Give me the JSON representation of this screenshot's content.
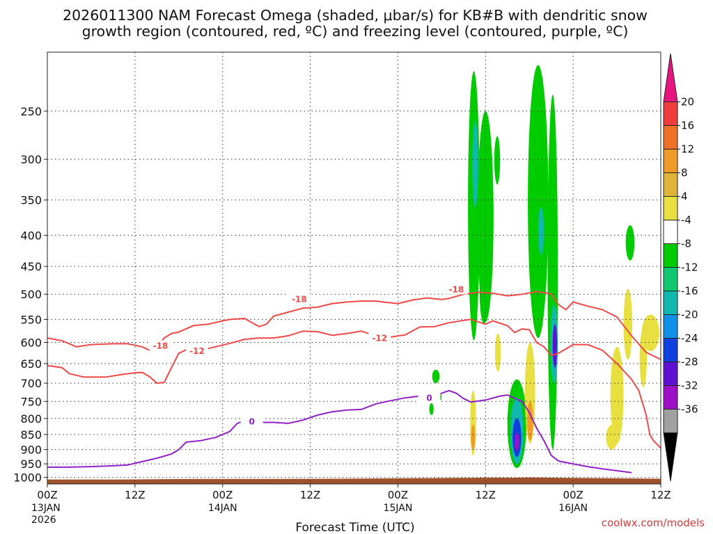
{
  "chart_data": {
    "type": "area",
    "title_line1": "2026011300 NAM Forecast Omega (shaded, μbar/s) for KB#B with dendritic snow",
    "title_line2": "growth region (contoured, red, ºC) and freezing level (contoured, purple, ºC)",
    "xlabel": "Forecast Time (UTC)",
    "ylabel": "",
    "credit": "coolwx.com/models",
    "x_range_hours": [
      0,
      84
    ],
    "y_range_hPa": [
      200,
      1025
    ],
    "y_scale": "pressure-log",
    "grid": true,
    "yticks": [
      {
        "p": 250,
        "label": "250"
      },
      {
        "p": 300,
        "label": "300"
      },
      {
        "p": 350,
        "label": "350"
      },
      {
        "p": 400,
        "label": "400"
      },
      {
        "p": 450,
        "label": "450"
      },
      {
        "p": 500,
        "label": "500"
      },
      {
        "p": 550,
        "label": "550"
      },
      {
        "p": 600,
        "label": "600"
      },
      {
        "p": 650,
        "label": "650"
      },
      {
        "p": 700,
        "label": "700"
      },
      {
        "p": 750,
        "label": "750"
      },
      {
        "p": 800,
        "label": "800"
      },
      {
        "p": 850,
        "label": "850"
      },
      {
        "p": 900,
        "label": "900"
      },
      {
        "p": 950,
        "label": "950"
      },
      {
        "p": 1000,
        "label": "1000"
      }
    ],
    "xticks": [
      {
        "h": 0,
        "label": "00Z",
        "sub1": "13JAN",
        "sub2": "2026"
      },
      {
        "h": 12,
        "label": "12Z",
        "sub1": "",
        "sub2": ""
      },
      {
        "h": 24,
        "label": "00Z",
        "sub1": "14JAN",
        "sub2": ""
      },
      {
        "h": 36,
        "label": "12Z",
        "sub1": "",
        "sub2": ""
      },
      {
        "h": 48,
        "label": "00Z",
        "sub1": "15JAN",
        "sub2": ""
      },
      {
        "h": 60,
        "label": "12Z",
        "sub1": "",
        "sub2": ""
      },
      {
        "h": 72,
        "label": "00Z",
        "sub1": "16JAN",
        "sub2": ""
      },
      {
        "h": 84,
        "label": "12Z",
        "sub1": "",
        "sub2": ""
      }
    ],
    "colorbar": {
      "labels": [
        "20",
        "16",
        "12",
        "8",
        "4",
        "-4",
        "-8",
        "-12",
        "-16",
        "-20",
        "-24",
        "-28",
        "-32",
        "-36"
      ],
      "colors": [
        "#e8157f",
        "#f03c3c",
        "#f07028",
        "#f09a28",
        "#e0b438",
        "#e8e040",
        "#ffffff",
        "#00cc00",
        "#10c870",
        "#10b8b0",
        "#1090e8",
        "#1040e0",
        "#6010d0",
        "#9c10c8",
        "#a0a0a0",
        "#000000"
      ]
    },
    "series": [
      {
        "name": "-18",
        "color": "#f04848",
        "label_positions": [
          [
            15.5,
            608
          ],
          [
            34.5,
            510
          ],
          [
            56.0,
            491
          ]
        ],
        "points": [
          [
            0,
            590
          ],
          [
            2,
            596
          ],
          [
            4,
            610
          ],
          [
            6,
            605
          ],
          [
            9,
            603
          ],
          [
            11,
            603
          ],
          [
            13,
            610
          ],
          [
            14,
            618
          ],
          [
            15,
            612
          ],
          [
            16,
            590
          ],
          [
            17,
            580
          ],
          [
            18,
            577
          ],
          [
            20,
            563
          ],
          [
            22,
            560
          ],
          [
            24,
            553
          ],
          [
            25,
            550
          ],
          [
            27,
            548
          ],
          [
            29,
            565
          ],
          [
            30,
            560
          ],
          [
            31,
            543
          ],
          [
            33,
            535
          ],
          [
            35,
            527
          ],
          [
            37,
            525
          ],
          [
            39,
            518
          ],
          [
            41,
            515
          ],
          [
            43,
            513
          ],
          [
            45,
            513
          ],
          [
            46,
            515
          ],
          [
            48,
            518
          ],
          [
            50,
            511
          ],
          [
            52,
            507
          ],
          [
            54,
            510
          ],
          [
            55,
            508
          ],
          [
            57,
            500
          ],
          [
            59,
            496
          ],
          [
            61,
            498
          ],
          [
            63,
            503
          ],
          [
            65,
            500
          ],
          [
            67,
            495
          ],
          [
            69,
            499
          ],
          [
            70,
            520
          ],
          [
            71,
            530
          ],
          [
            72,
            515
          ],
          [
            74,
            523
          ],
          [
            76,
            530
          ],
          [
            78,
            545
          ],
          [
            80,
            585
          ],
          [
            82,
            623
          ],
          [
            84,
            640
          ]
        ]
      },
      {
        "name": "-12",
        "color": "#f04848",
        "label_positions": [
          [
            20.5,
            620
          ],
          [
            45.5,
            591
          ]
        ],
        "points": [
          [
            0,
            655
          ],
          [
            2,
            660
          ],
          [
            3,
            675
          ],
          [
            5,
            684
          ],
          [
            8,
            684
          ],
          [
            10,
            678
          ],
          [
            12,
            673
          ],
          [
            13,
            672
          ],
          [
            14,
            683
          ],
          [
            15,
            700
          ],
          [
            16,
            698
          ],
          [
            17,
            660
          ],
          [
            18,
            625
          ],
          [
            19,
            617
          ],
          [
            21,
            618
          ],
          [
            23,
            610
          ],
          [
            25,
            602
          ],
          [
            27,
            593
          ],
          [
            29,
            590
          ],
          [
            31,
            590
          ],
          [
            33,
            585
          ],
          [
            35,
            575
          ],
          [
            37,
            576
          ],
          [
            39,
            584
          ],
          [
            41,
            580
          ],
          [
            43,
            575
          ],
          [
            45,
            585
          ],
          [
            47,
            588
          ],
          [
            49,
            583
          ],
          [
            51,
            566
          ],
          [
            53,
            565
          ],
          [
            55,
            557
          ],
          [
            57,
            552
          ],
          [
            58,
            550
          ],
          [
            60,
            560
          ],
          [
            61,
            553
          ],
          [
            63,
            563
          ],
          [
            64,
            578
          ],
          [
            65,
            570
          ],
          [
            66,
            572
          ],
          [
            67,
            600
          ],
          [
            68,
            610
          ],
          [
            69,
            630
          ],
          [
            70,
            625
          ],
          [
            72,
            605
          ],
          [
            74,
            605
          ],
          [
            76,
            618
          ],
          [
            78,
            650
          ],
          [
            80,
            690
          ],
          [
            81,
            720
          ],
          [
            82,
            790
          ],
          [
            82.5,
            850
          ],
          [
            83,
            870
          ],
          [
            84,
            895
          ]
        ]
      },
      {
        "name": "0",
        "color": "#9020c8",
        "label_positions": [
          [
            28.0,
            810
          ],
          [
            52.3,
            741
          ]
        ],
        "points": [
          [
            0,
            962
          ],
          [
            3,
            962
          ],
          [
            6,
            960
          ],
          [
            9,
            957
          ],
          [
            11,
            954
          ],
          [
            13,
            942
          ],
          [
            15,
            930
          ],
          [
            17,
            915
          ],
          [
            18,
            900
          ],
          [
            19,
            875
          ],
          [
            21,
            870
          ],
          [
            23,
            860
          ],
          [
            25,
            840
          ],
          [
            26,
            815
          ],
          [
            28,
            800
          ],
          [
            29,
            812
          ],
          [
            31,
            812
          ],
          [
            33,
            815
          ],
          [
            35,
            805
          ],
          [
            37,
            790
          ],
          [
            39,
            780
          ],
          [
            41,
            775
          ],
          [
            43,
            773
          ],
          [
            45,
            757
          ],
          [
            47,
            748
          ],
          [
            49,
            740
          ],
          [
            51,
            735
          ],
          [
            53,
            735
          ],
          [
            54,
            727
          ],
          [
            55,
            720
          ],
          [
            56,
            727
          ],
          [
            57,
            742
          ],
          [
            58,
            752
          ],
          [
            60,
            746
          ],
          [
            62,
            735
          ],
          [
            63,
            732
          ],
          [
            65,
            750
          ],
          [
            66,
            782
          ],
          [
            67,
            830
          ],
          [
            68,
            870
          ],
          [
            69,
            920
          ],
          [
            70,
            940
          ],
          [
            72,
            950
          ],
          [
            74,
            960
          ],
          [
            76,
            968
          ],
          [
            78,
            975
          ],
          [
            80,
            982
          ]
        ]
      }
    ],
    "omega_regions": [
      {
        "h_center": 58.4,
        "half_width": 0.8,
        "p_top": 215,
        "p_bottom": 595,
        "value": -6
      },
      {
        "h_center": 60.0,
        "half_width": 1.1,
        "p_top": 250,
        "p_bottom": 555,
        "value": -6
      },
      {
        "h_center": 58.6,
        "half_width": 0.4,
        "p_top": 260,
        "p_bottom": 360,
        "value": -14
      },
      {
        "h_center": 61.6,
        "half_width": 0.4,
        "p_top": 275,
        "p_bottom": 330,
        "value": -6
      },
      {
        "h_center": 59.8,
        "half_width": 0.6,
        "p_top": 440,
        "p_bottom": 560,
        "value": -6
      },
      {
        "h_center": 67.2,
        "half_width": 1.4,
        "p_top": 210,
        "p_bottom": 590,
        "value": -6
      },
      {
        "h_center": 67.6,
        "half_width": 0.4,
        "p_top": 360,
        "p_bottom": 430,
        "value": -14
      },
      {
        "h_center": 69.2,
        "half_width": 0.7,
        "p_top": 235,
        "p_bottom": 900,
        "value": -6
      },
      {
        "h_center": 69.4,
        "half_width": 0.5,
        "p_top": 520,
        "p_bottom": 700,
        "value": -14
      },
      {
        "h_center": 69.5,
        "half_width": 0.3,
        "p_top": 560,
        "p_bottom": 660,
        "value": -26
      },
      {
        "h_center": 64.3,
        "half_width": 1.3,
        "p_top": 690,
        "p_bottom": 965,
        "value": -6
      },
      {
        "h_center": 64.3,
        "half_width": 0.9,
        "p_top": 740,
        "p_bottom": 950,
        "value": -14
      },
      {
        "h_center": 64.3,
        "half_width": 0.6,
        "p_top": 800,
        "p_bottom": 925,
        "value": -22
      },
      {
        "h_center": 64.3,
        "half_width": 0.3,
        "p_top": 845,
        "p_bottom": 905,
        "value": -30
      },
      {
        "h_center": 53.2,
        "half_width": 0.5,
        "p_top": 665,
        "p_bottom": 700,
        "value": -6
      },
      {
        "h_center": 52.6,
        "half_width": 0.3,
        "p_top": 755,
        "p_bottom": 790,
        "value": -6
      },
      {
        "h_center": 53.7,
        "half_width": 0.3,
        "p_top": 725,
        "p_bottom": 750,
        "value": -6
      },
      {
        "h_center": 79.8,
        "half_width": 0.6,
        "p_top": 385,
        "p_bottom": 440,
        "value": -6
      },
      {
        "h_center": 58.3,
        "half_width": 0.4,
        "p_top": 720,
        "p_bottom": 920,
        "value": 6
      },
      {
        "h_center": 58.3,
        "half_width": 0.2,
        "p_top": 820,
        "p_bottom": 900,
        "value": 10
      },
      {
        "h_center": 61.7,
        "half_width": 0.4,
        "p_top": 580,
        "p_bottom": 670,
        "value": 6
      },
      {
        "h_center": 66.1,
        "half_width": 0.7,
        "p_top": 600,
        "p_bottom": 880,
        "value": 6
      },
      {
        "h_center": 66.1,
        "half_width": 0.4,
        "p_top": 750,
        "p_bottom": 870,
        "value": 10
      },
      {
        "h_center": 79.5,
        "half_width": 0.6,
        "p_top": 490,
        "p_bottom": 640,
        "value": 6
      },
      {
        "h_center": 78.0,
        "half_width": 0.9,
        "p_top": 610,
        "p_bottom": 880,
        "value": 6
      },
      {
        "h_center": 77.3,
        "half_width": 0.8,
        "p_top": 820,
        "p_bottom": 900,
        "value": 6
      },
      {
        "h_center": 82.6,
        "half_width": 1.2,
        "p_top": 540,
        "p_bottom": 620,
        "value": 6
      },
      {
        "h_center": 81.6,
        "half_width": 0.5,
        "p_top": 570,
        "p_bottom": 710,
        "value": 6
      }
    ],
    "terrain": {
      "color": "#a0522d",
      "points": [
        [
          0,
          1008
        ],
        [
          10,
          1008
        ],
        [
          20,
          1006
        ],
        [
          30,
          1006
        ],
        [
          40,
          1005
        ],
        [
          50,
          1003
        ],
        [
          60,
          1001
        ],
        [
          64,
          1001
        ],
        [
          66,
          1000
        ],
        [
          69,
          1001
        ],
        [
          72,
          1002
        ],
        [
          80,
          1004
        ],
        [
          84,
          1005
        ]
      ]
    }
  }
}
